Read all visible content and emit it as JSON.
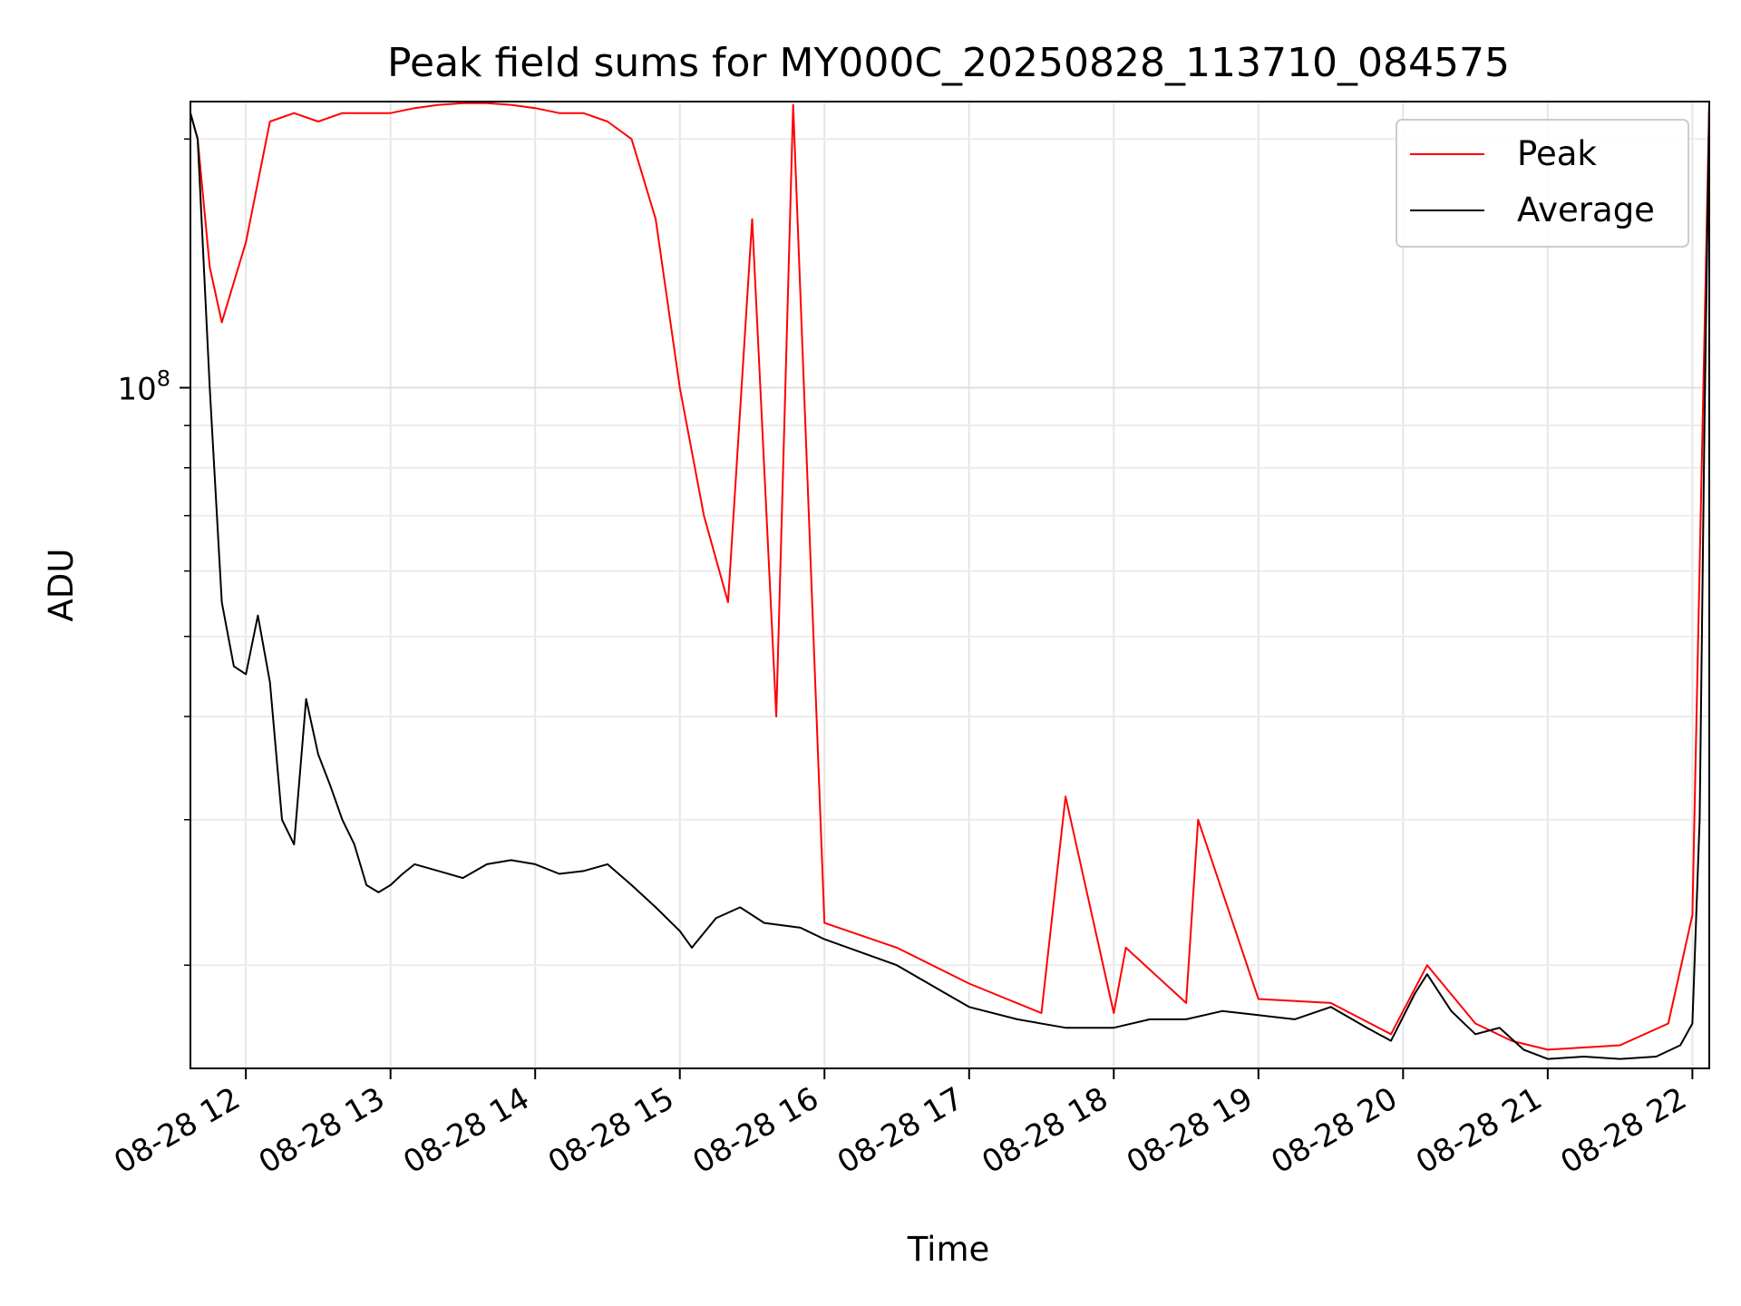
{
  "chart_data": {
    "type": "line",
    "title": "Peak field sums for MY000C_20250828_113710_084575",
    "xlabel": "Time",
    "ylabel": "ADU",
    "yscale": "log",
    "ylim": [
      15000000,
      222000000
    ],
    "xlim": [
      "08-28 11:37",
      "08-28 22:07"
    ],
    "grid": true,
    "legend_position": "top-right",
    "x_ticks": [
      "08-28 12",
      "08-28 13",
      "08-28 14",
      "08-28 15",
      "08-28 16",
      "08-28 17",
      "08-28 18",
      "08-28 19",
      "08-28 20",
      "08-28 21",
      "08-28 22"
    ],
    "y_ticks": [
      {
        "value": 100000000,
        "base": "10",
        "exponent": "8"
      }
    ],
    "series": [
      {
        "name": "Peak",
        "color": "#ff0000",
        "x": [
          "08-28 11:37",
          "08-28 11:40",
          "08-28 11:45",
          "08-28 11:50",
          "08-28 12:00",
          "08-28 12:10",
          "08-28 12:20",
          "08-28 12:30",
          "08-28 12:40",
          "08-28 12:50",
          "08-28 13:00",
          "08-28 13:10",
          "08-28 13:20",
          "08-28 13:30",
          "08-28 13:40",
          "08-28 13:50",
          "08-28 14:00",
          "08-28 14:10",
          "08-28 14:20",
          "08-28 14:30",
          "08-28 14:40",
          "08-28 14:50",
          "08-28 15:00",
          "08-28 15:10",
          "08-28 15:20",
          "08-28 15:30",
          "08-28 15:40",
          "08-28 15:47",
          "08-28 16:00",
          "08-28 16:30",
          "08-28 17:00",
          "08-28 17:30",
          "08-28 17:40",
          "08-28 18:00",
          "08-28 18:05",
          "08-28 18:30",
          "08-28 18:35",
          "08-28 19:00",
          "08-28 19:30",
          "08-28 19:55",
          "08-28 20:10",
          "08-28 20:30",
          "08-28 20:45",
          "08-28 21:00",
          "08-28 21:30",
          "08-28 21:50",
          "08-28 22:00",
          "08-28 22:07"
        ],
        "values": [
          215000000,
          200000000,
          140000000,
          120000000,
          150000000,
          210000000,
          215000000,
          210000000,
          215000000,
          215000000,
          215000000,
          218000000,
          220000000,
          221000000,
          221000000,
          220000000,
          218000000,
          215000000,
          215000000,
          210000000,
          200000000,
          160000000,
          100000000,
          70000000,
          55000000,
          160000000,
          40000000,
          220000000,
          22500000,
          21000000,
          19000000,
          17500000,
          32000000,
          17500000,
          21000000,
          18000000,
          30000000,
          18200000,
          18000000,
          16500000,
          20000000,
          17000000,
          16200000,
          15800000,
          16000000,
          17000000,
          23000000,
          221000000
        ]
      },
      {
        "name": "Average",
        "color": "#000000",
        "x": [
          "08-28 11:37",
          "08-28 11:40",
          "08-28 11:45",
          "08-28 11:50",
          "08-28 11:55",
          "08-28 12:00",
          "08-28 12:05",
          "08-28 12:10",
          "08-28 12:15",
          "08-28 12:20",
          "08-28 12:25",
          "08-28 12:30",
          "08-28 12:35",
          "08-28 12:40",
          "08-28 12:45",
          "08-28 12:50",
          "08-28 12:55",
          "08-28 13:00",
          "08-28 13:05",
          "08-28 13:10",
          "08-28 13:20",
          "08-28 13:30",
          "08-28 13:40",
          "08-28 13:50",
          "08-28 14:00",
          "08-28 14:10",
          "08-28 14:20",
          "08-28 14:30",
          "08-28 14:40",
          "08-28 14:50",
          "08-28 15:00",
          "08-28 15:05",
          "08-28 15:15",
          "08-28 15:25",
          "08-28 15:35",
          "08-28 15:50",
          "08-28 16:00",
          "08-28 16:30",
          "08-28 16:50",
          "08-28 17:00",
          "08-28 17:20",
          "08-28 17:40",
          "08-28 18:00",
          "08-28 18:15",
          "08-28 18:30",
          "08-28 18:45",
          "08-28 19:00",
          "08-28 19:15",
          "08-28 19:30",
          "08-28 19:45",
          "08-28 19:55",
          "08-28 20:05",
          "08-28 20:10",
          "08-28 20:20",
          "08-28 20:30",
          "08-28 20:40",
          "08-28 20:50",
          "08-28 21:00",
          "08-28 21:15",
          "08-28 21:30",
          "08-28 21:45",
          "08-28 21:55",
          "08-28 22:00",
          "08-28 22:03",
          "08-28 22:05",
          "08-28 22:07"
        ],
        "values": [
          215000000,
          200000000,
          100000000,
          55000000,
          46000000,
          45000000,
          53000000,
          44000000,
          30000000,
          28000000,
          42000000,
          36000000,
          33000000,
          30000000,
          28000000,
          25000000,
          24500000,
          25000000,
          25800000,
          26500000,
          26000000,
          25500000,
          26500000,
          26800000,
          26500000,
          25800000,
          26000000,
          26500000,
          25000000,
          23500000,
          22000000,
          21000000,
          22800000,
          23500000,
          22500000,
          22200000,
          21500000,
          20000000,
          18500000,
          17800000,
          17200000,
          16800000,
          16800000,
          17200000,
          17200000,
          17600000,
          17400000,
          17200000,
          17800000,
          16800000,
          16200000,
          18500000,
          19500000,
          17600000,
          16500000,
          16800000,
          15800000,
          15400000,
          15500000,
          15400000,
          15500000,
          16000000,
          17000000,
          30000000,
          90000000,
          221000000
        ]
      }
    ]
  }
}
